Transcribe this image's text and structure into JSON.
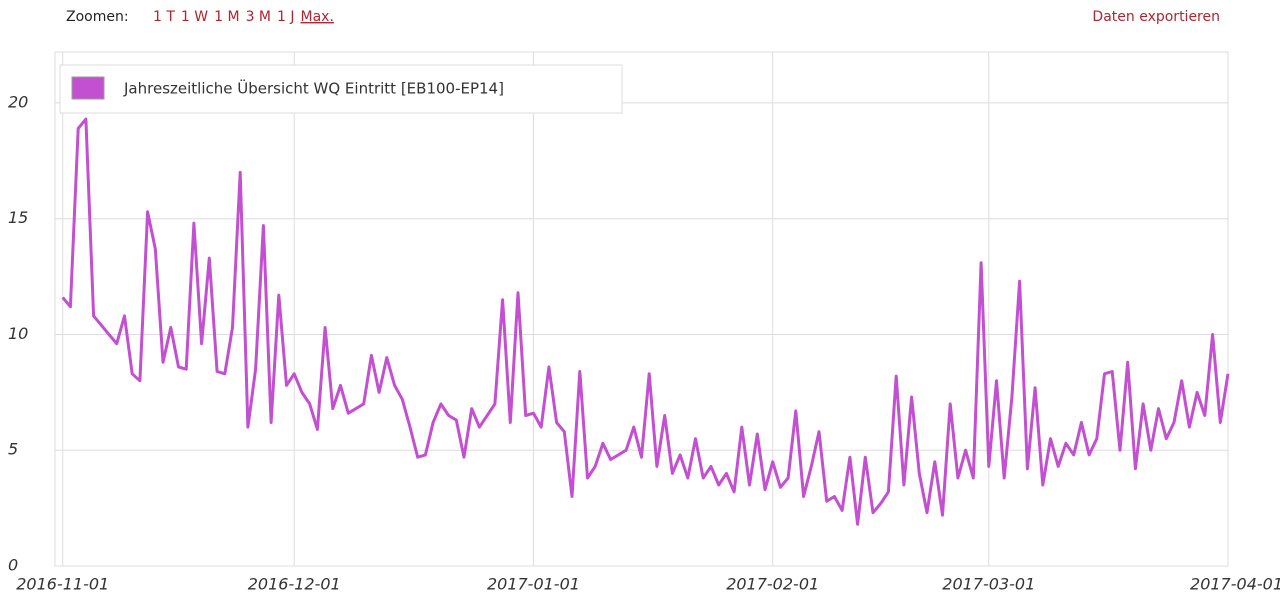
{
  "toolbar": {
    "zoom_label": "Zoomen:",
    "zoom_options": [
      "1 T",
      "1 W",
      "1 M",
      "3 M",
      "1 J",
      "Max."
    ],
    "export": "Daten exportieren"
  },
  "chart_data": {
    "type": "line",
    "x": [
      "2016-11-01",
      "2016-11-02",
      "2016-11-03",
      "2016-11-04",
      "2016-11-05",
      "2016-11-06",
      "2016-11-07",
      "2016-11-08",
      "2016-11-09",
      "2016-11-10",
      "2016-11-11",
      "2016-11-12",
      "2016-11-13",
      "2016-11-14",
      "2016-11-15",
      "2016-11-16",
      "2016-11-17",
      "2016-11-18",
      "2016-11-19",
      "2016-11-20",
      "2016-11-21",
      "2016-11-22",
      "2016-11-23",
      "2016-11-24",
      "2016-11-25",
      "2016-11-26",
      "2016-11-27",
      "2016-11-28",
      "2016-11-29",
      "2016-11-30",
      "2016-12-01",
      "2016-12-02",
      "2016-12-03",
      "2016-12-04",
      "2016-12-05",
      "2016-12-06",
      "2016-12-07",
      "2016-12-08",
      "2016-12-09",
      "2016-12-10",
      "2016-12-11",
      "2016-12-12",
      "2016-12-13",
      "2016-12-14",
      "2016-12-15",
      "2016-12-16",
      "2016-12-17",
      "2016-12-18",
      "2016-12-19",
      "2016-12-20",
      "2016-12-21",
      "2016-12-22",
      "2016-12-23",
      "2016-12-24",
      "2016-12-25",
      "2016-12-26",
      "2016-12-27",
      "2016-12-28",
      "2016-12-29",
      "2016-12-30",
      "2016-12-31",
      "2017-01-01",
      "2017-01-02",
      "2017-01-03",
      "2017-01-04",
      "2017-01-05",
      "2017-01-06",
      "2017-01-07",
      "2017-01-08",
      "2017-01-09",
      "2017-01-10",
      "2017-01-11",
      "2017-01-12",
      "2017-01-13",
      "2017-01-14",
      "2017-01-15",
      "2017-01-16",
      "2017-01-17",
      "2017-01-18",
      "2017-01-19",
      "2017-01-20",
      "2017-01-21",
      "2017-01-22",
      "2017-01-23",
      "2017-01-24",
      "2017-01-25",
      "2017-01-26",
      "2017-01-27",
      "2017-01-28",
      "2017-01-29",
      "2017-01-30",
      "2017-01-31",
      "2017-02-01",
      "2017-02-02",
      "2017-02-03",
      "2017-02-04",
      "2017-02-05",
      "2017-02-06",
      "2017-02-07",
      "2017-02-08",
      "2017-02-09",
      "2017-02-10",
      "2017-02-11",
      "2017-02-12",
      "2017-02-13",
      "2017-02-14",
      "2017-02-15",
      "2017-02-16",
      "2017-02-17",
      "2017-02-18",
      "2017-02-19",
      "2017-02-20",
      "2017-02-21",
      "2017-02-22",
      "2017-02-23",
      "2017-02-24",
      "2017-02-25",
      "2017-02-26",
      "2017-02-27",
      "2017-02-28",
      "2017-03-01",
      "2017-03-02",
      "2017-03-03",
      "2017-03-04",
      "2017-03-05",
      "2017-03-06",
      "2017-03-07",
      "2017-03-08",
      "2017-03-09",
      "2017-03-10",
      "2017-03-11",
      "2017-03-12",
      "2017-03-13",
      "2017-03-14",
      "2017-03-15",
      "2017-03-16",
      "2017-03-17",
      "2017-03-18",
      "2017-03-19",
      "2017-03-20",
      "2017-03-21",
      "2017-03-22",
      "2017-03-23",
      "2017-03-24",
      "2017-03-25",
      "2017-03-26",
      "2017-03-27",
      "2017-03-28",
      "2017-03-29",
      "2017-03-30",
      "2017-03-31",
      "2017-04-01"
    ],
    "series": [
      {
        "name": "Jahreszeitliche Übersicht WQ Eintritt [EB100-EP14]",
        "color": "#c34fd1",
        "values": [
          11.6,
          11.2,
          18.9,
          19.3,
          10.8,
          10.4,
          10.0,
          9.6,
          10.8,
          8.3,
          8.0,
          15.3,
          13.7,
          8.8,
          10.3,
          8.6,
          8.5,
          14.8,
          9.6,
          13.3,
          8.4,
          8.3,
          10.3,
          17.0,
          6.0,
          8.5,
          14.7,
          6.2,
          11.7,
          7.8,
          8.3,
          7.5,
          7.0,
          5.9,
          10.3,
          6.8,
          7.8,
          6.6,
          6.8,
          7.0,
          9.1,
          7.5,
          9.0,
          7.8,
          7.2,
          6.0,
          4.7,
          4.8,
          6.2,
          7.0,
          6.5,
          6.3,
          4.7,
          6.8,
          6.0,
          6.5,
          7.0,
          11.5,
          6.2,
          11.8,
          6.5,
          6.6,
          6.0,
          8.6,
          6.2,
          5.8,
          3.0,
          8.4,
          3.8,
          4.3,
          5.3,
          4.6,
          4.8,
          5.0,
          6.0,
          4.7,
          8.3,
          4.3,
          6.5,
          4.0,
          4.8,
          3.8,
          5.5,
          3.8,
          4.3,
          3.5,
          4.0,
          3.2,
          6.0,
          3.5,
          5.7,
          3.3,
          4.5,
          3.4,
          3.8,
          6.7,
          3.0,
          4.3,
          5.8,
          2.8,
          3.0,
          2.4,
          4.7,
          1.8,
          4.7,
          2.3,
          2.7,
          3.2,
          8.2,
          3.5,
          7.3,
          4.0,
          2.3,
          4.5,
          2.2,
          7.0,
          3.8,
          5.0,
          3.8,
          13.1,
          4.3,
          8.0,
          3.8,
          7.3,
          12.3,
          4.2,
          7.7,
          3.5,
          5.5,
          4.3,
          5.3,
          4.8,
          6.2,
          4.8,
          5.5,
          8.3,
          8.4,
          5.0,
          8.8,
          4.2,
          7.0,
          5.0,
          6.8,
          5.5,
          6.2,
          8.0,
          6.0,
          7.5,
          6.5,
          10.0,
          6.2,
          8.3
        ]
      }
    ],
    "xlim": [
      "2016-10-31",
      "2017-04-01"
    ],
    "xticks": [
      "2016-11-01",
      "2016-12-01",
      "2017-01-01",
      "2017-02-01",
      "2017-03-01",
      "2017-04-01"
    ],
    "ylim": [
      0,
      22.2
    ],
    "yticks": [
      0,
      5,
      10,
      15,
      20
    ],
    "grid": true,
    "legend": "top-left"
  }
}
